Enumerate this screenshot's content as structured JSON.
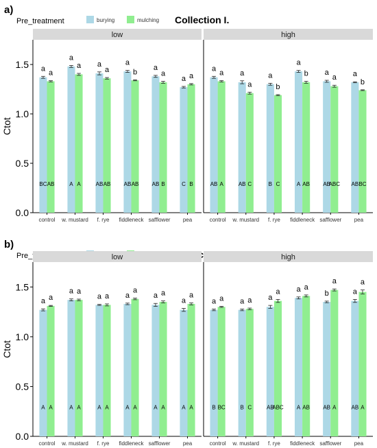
{
  "colors": {
    "burying": "#add8e6",
    "mulching": "#90ee90",
    "strip": "#d9d9d9",
    "axis": "#000000"
  },
  "legend_title": "Pre_treatment",
  "legend_items": [
    {
      "label": "burying",
      "color": "#add8e6"
    },
    {
      "label": "mulching",
      "color": "#90ee90"
    }
  ],
  "chart_data": [
    {
      "type": "bar",
      "panel_label": "a)",
      "title": "Collection I.",
      "ylabel": "Ctot",
      "ylim": [
        0,
        1.75
      ],
      "yticks": [
        "0.0",
        "0.5",
        "1.0",
        "1.5"
      ],
      "categories": [
        "control",
        "w. mustard",
        "f. rye",
        "fiddleneck",
        "safflower",
        "pea"
      ],
      "facets": [
        {
          "name": "low",
          "series": [
            {
              "name": "burying",
              "values": [
                1.37,
                1.48,
                1.41,
                1.43,
                1.38,
                1.27
              ],
              "se": [
                0.01,
                0.01,
                0.015,
                0.01,
                0.01,
                0.008
              ]
            },
            {
              "name": "mulching",
              "values": [
                1.33,
                1.4,
                1.36,
                1.34,
                1.32,
                1.3
              ],
              "se": [
                0.006,
                0.01,
                0.008,
                0.005,
                0.01,
                0.007
              ]
            }
          ],
          "letters_top": [
            [
              "a",
              "a"
            ],
            [
              "a",
              "a"
            ],
            [
              "a",
              "a"
            ],
            [
              "a",
              "b"
            ],
            [
              "a",
              "a"
            ],
            [
              "a",
              "a"
            ]
          ],
          "letters_bottom": [
            [
              "BC",
              "AB"
            ],
            [
              "A",
              "A"
            ],
            [
              "AB",
              "AB"
            ],
            [
              "AB",
              "AB"
            ],
            [
              "AB",
              "B"
            ],
            [
              "C",
              "B"
            ]
          ]
        },
        {
          "name": "high",
          "series": [
            {
              "name": "burying",
              "values": [
                1.37,
                1.32,
                1.3,
                1.43,
                1.33,
                1.32
              ],
              "se": [
                0.01,
                0.015,
                0.01,
                0.01,
                0.01,
                0.005
              ]
            },
            {
              "name": "mulching",
              "values": [
                1.33,
                1.21,
                1.19,
                1.32,
                1.28,
                1.24
              ],
              "se": [
                0.007,
                0.01,
                0.005,
                0.01,
                0.01,
                0.004
              ]
            }
          ],
          "letters_top": [
            [
              "a",
              "a"
            ],
            [
              "a",
              "a"
            ],
            [
              "a",
              "b"
            ],
            [
              "a",
              "b"
            ],
            [
              "a",
              "a"
            ],
            [
              "a",
              "b"
            ]
          ],
          "letters_bottom": [
            [
              "AB",
              "A"
            ],
            [
              "AB",
              "C"
            ],
            [
              "B",
              "C"
            ],
            [
              "A",
              "AB"
            ],
            [
              "AB",
              "ABC"
            ],
            [
              "AB",
              "BC"
            ]
          ]
        }
      ]
    },
    {
      "type": "bar",
      "panel_label": "b)",
      "title": "Collection II.",
      "ylabel": "Ctot",
      "ylim": [
        0,
        1.75
      ],
      "yticks": [
        "0.0",
        "0.5",
        "1.0",
        "1.5"
      ],
      "categories": [
        "control",
        "w. mustard",
        "f. rye",
        "fiddleneck",
        "safflower",
        "pea"
      ],
      "facets": [
        {
          "name": "low",
          "series": [
            {
              "name": "burying",
              "values": [
                1.27,
                1.37,
                1.32,
                1.33,
                1.32,
                1.27
              ],
              "se": [
                0.01,
                0.01,
                0.005,
                0.008,
                0.015,
                0.015
              ]
            },
            {
              "name": "mulching",
              "values": [
                1.31,
                1.37,
                1.32,
                1.38,
                1.35,
                1.33
              ],
              "se": [
                0.005,
                0.008,
                0.01,
                0.008,
                0.01,
                0.01
              ]
            }
          ],
          "letters_top": [
            [
              "a",
              "a"
            ],
            [
              "a",
              "a"
            ],
            [
              "a",
              "a"
            ],
            [
              "a",
              "a"
            ],
            [
              "a",
              "a"
            ],
            [
              "a",
              "a"
            ]
          ],
          "letters_bottom": [
            [
              "A",
              "A"
            ],
            [
              "A",
              "A"
            ],
            [
              "A",
              "A"
            ],
            [
              "A",
              "A"
            ],
            [
              "A",
              "A"
            ],
            [
              "A",
              "A"
            ]
          ]
        },
        {
          "name": "high",
          "series": [
            {
              "name": "burying",
              "values": [
                1.27,
                1.27,
                1.3,
                1.39,
                1.35,
                1.36
              ],
              "se": [
                0.008,
                0.008,
                0.015,
                0.01,
                0.008,
                0.015
              ]
            },
            {
              "name": "mulching",
              "values": [
                1.3,
                1.28,
                1.36,
                1.41,
                1.47,
                1.45
              ],
              "se": [
                0.005,
                0.008,
                0.015,
                0.01,
                0.01,
                0.02
              ]
            }
          ],
          "letters_top": [
            [
              "a",
              "a"
            ],
            [
              "a",
              "a"
            ],
            [
              "a",
              "a"
            ],
            [
              "a",
              "a"
            ],
            [
              "b",
              "a"
            ],
            [
              "a",
              "a"
            ]
          ],
          "letters_bottom": [
            [
              "B",
              "BC"
            ],
            [
              "B",
              "C"
            ],
            [
              "AB",
              "ABC"
            ],
            [
              "A",
              "AB"
            ],
            [
              "AB",
              "A"
            ],
            [
              "AB",
              "A"
            ]
          ]
        }
      ]
    }
  ]
}
